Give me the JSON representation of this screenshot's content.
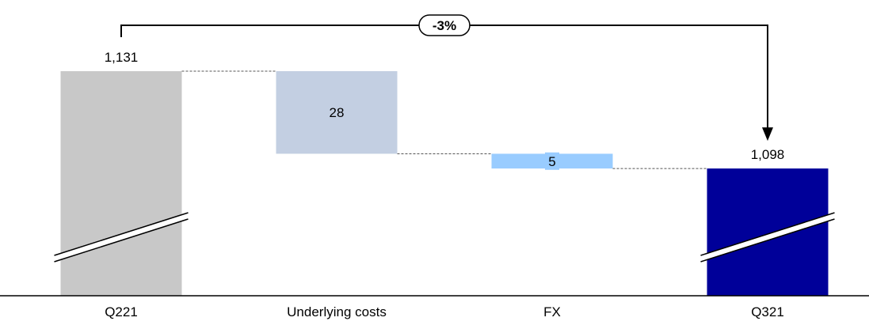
{
  "chart_data": {
    "type": "waterfall",
    "categories": [
      "Q221",
      "Underlying costs",
      "FX",
      "Q321"
    ],
    "bars": [
      {
        "category": "Q221",
        "kind": "total",
        "value": 1131,
        "label": "1,131",
        "color": "#c8c8c8"
      },
      {
        "category": "Underlying costs",
        "kind": "decrease",
        "value": 28,
        "label": "28",
        "color": "#c3cfe2"
      },
      {
        "category": "FX",
        "kind": "decrease",
        "value": 5,
        "label": "5",
        "color": "#99ccff"
      },
      {
        "category": "Q321",
        "kind": "total",
        "value": 1098,
        "label": "1,098",
        "color": "#000099"
      }
    ],
    "change_label": "-3%",
    "axis_break": true,
    "connectors": "dashed"
  }
}
